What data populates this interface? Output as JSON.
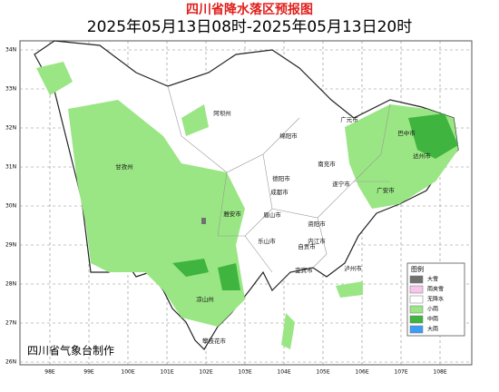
{
  "header": {
    "title": "四川省降水落区预报图",
    "subtitle": "2025年05月13日08时-2025年05月13日20时"
  },
  "map": {
    "lat_labels": [
      "34N",
      "33N",
      "32N",
      "31N",
      "30N",
      "29N",
      "28N",
      "27N",
      "26N"
    ],
    "lon_labels": [
      "98E",
      "99E",
      "100E",
      "101E",
      "102E",
      "103E",
      "104E",
      "105E",
      "106E",
      "107E",
      "108E"
    ],
    "cities": [
      {
        "name": "阿坝州"
      },
      {
        "name": "绵阳市"
      },
      {
        "name": "广元市"
      },
      {
        "name": "巴中市"
      },
      {
        "name": "达州市"
      },
      {
        "name": "甘孜州"
      },
      {
        "name": "德阳市"
      },
      {
        "name": "南充市"
      },
      {
        "name": "成都市"
      },
      {
        "name": "遂宁市"
      },
      {
        "name": "广安市"
      },
      {
        "name": "雅安市"
      },
      {
        "name": "眉山市"
      },
      {
        "name": "资阳市"
      },
      {
        "name": "乐山市"
      },
      {
        "name": "内江市"
      },
      {
        "name": "自贡市"
      },
      {
        "name": "凉山州"
      },
      {
        "name": "宜宾市"
      },
      {
        "name": "泸州市"
      },
      {
        "name": "攀枝花市"
      }
    ]
  },
  "legend": {
    "title": "图例",
    "items": [
      {
        "label": "大雪",
        "color": "#707070"
      },
      {
        "label": "雨夹雪",
        "color": "#f7c6e8"
      },
      {
        "label": "无降水",
        "color": "#ffffff"
      },
      {
        "label": "小雨",
        "color": "#9ae684"
      },
      {
        "label": "中雨",
        "color": "#3fb43f"
      },
      {
        "label": "大雨",
        "color": "#3d9df5"
      }
    ]
  },
  "footer": "四川省气象台制作"
}
